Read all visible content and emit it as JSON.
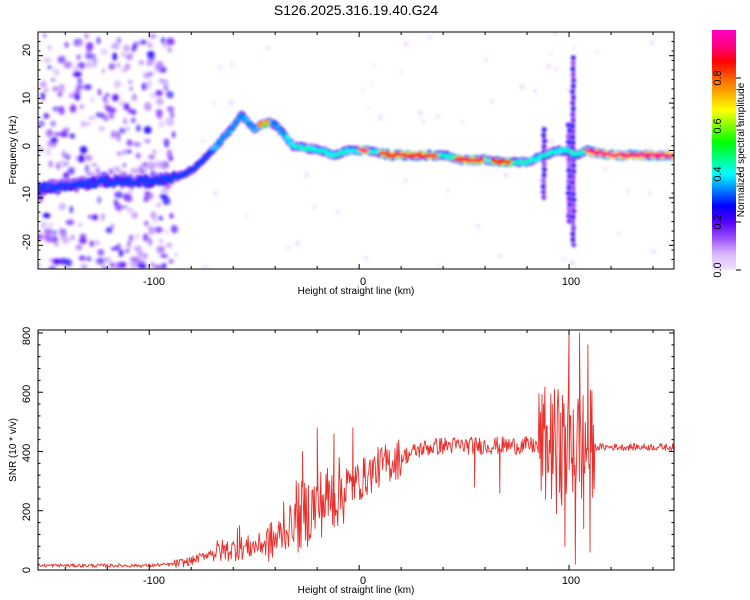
{
  "chart_data": [
    {
      "type": "heatmap",
      "title": "S126.2025.316.19.40.G24",
      "xlabel": "Height of straight line (km)",
      "ylabel": "Frequency (Hz)",
      "xlim": [
        -153,
        150
      ],
      "ylim": [
        -25,
        25
      ],
      "xticks": [
        -100,
        0,
        100
      ],
      "xtick_labels": [
        "-100",
        "0",
        "100"
      ],
      "yticks": [
        20,
        10,
        0,
        -10,
        -20
      ],
      "ytick_labels": [
        "20",
        "10",
        "0",
        "-10",
        "-20"
      ],
      "colorbar": {
        "label": "Normalized spectral amplitude",
        "range": [
          0,
          1
        ],
        "ticks": [
          0,
          0.2,
          0.4,
          0.6,
          0.8
        ],
        "tick_labels": [
          "0.0",
          "0.2",
          "0.4",
          "0.6",
          "0.8"
        ],
        "colors": [
          "#f0e2ff",
          "#d9b8ff",
          "#9b4dff",
          "#5500ff",
          "#0000ff",
          "#0080ff",
          "#00ffff",
          "#00ff80",
          "#00ff00",
          "#80ff00",
          "#ffff00",
          "#ffb000",
          "#ff6000",
          "#ff0000",
          "#ff0080",
          "#ff00c0"
        ]
      },
      "noise_region_x": [
        -153,
        -88
      ],
      "ridge": [
        {
          "x": -153,
          "y": -8.0
        },
        {
          "x": -140,
          "y": -7.5
        },
        {
          "x": -130,
          "y": -7.0
        },
        {
          "x": -120,
          "y": -6.5
        },
        {
          "x": -110,
          "y": -6.5
        },
        {
          "x": -100,
          "y": -6.5
        },
        {
          "x": -90,
          "y": -6.0
        },
        {
          "x": -83,
          "y": -5.0
        },
        {
          "x": -78,
          "y": -3.5
        },
        {
          "x": -72,
          "y": -1.0
        },
        {
          "x": -66,
          "y": 2.0
        },
        {
          "x": -60,
          "y": 5.0
        },
        {
          "x": -56,
          "y": 7.5
        },
        {
          "x": -53,
          "y": 6.0
        },
        {
          "x": -50,
          "y": 4.5
        },
        {
          "x": -45,
          "y": 6.0
        },
        {
          "x": -40,
          "y": 5.5
        },
        {
          "x": -35,
          "y": 3.0
        },
        {
          "x": -32,
          "y": 1.0
        },
        {
          "x": -25,
          "y": 0.5
        },
        {
          "x": -18,
          "y": 0.0
        },
        {
          "x": -12,
          "y": -1.0
        },
        {
          "x": -5,
          "y": 0.0
        },
        {
          "x": 5,
          "y": 0.0
        },
        {
          "x": 15,
          "y": -1.0
        },
        {
          "x": 30,
          "y": -1.0
        },
        {
          "x": 40,
          "y": -1.0
        },
        {
          "x": 50,
          "y": -2.0
        },
        {
          "x": 60,
          "y": -2.0
        },
        {
          "x": 70,
          "y": -2.5
        },
        {
          "x": 80,
          "y": -2.5
        },
        {
          "x": 88,
          "y": -1.0
        },
        {
          "x": 95,
          "y": 0.0
        },
        {
          "x": 100,
          "y": 0.0
        },
        {
          "x": 103,
          "y": -1.0
        },
        {
          "x": 108,
          "y": 0.0
        },
        {
          "x": 120,
          "y": -1.0
        },
        {
          "x": 135,
          "y": -1.0
        },
        {
          "x": 150,
          "y": -1.0
        }
      ],
      "hot_segments": [
        {
          "x0": 0,
          "x1": 5,
          "value": 0.95
        },
        {
          "x0": 10,
          "x1": 38,
          "value": 0.9
        },
        {
          "x0": 46,
          "x1": 60,
          "value": 0.9
        },
        {
          "x0": 63,
          "x1": 73,
          "value": 0.85
        },
        {
          "x0": 108,
          "x1": 150,
          "value": 0.95
        },
        {
          "x0": -48,
          "x1": -42,
          "value": 0.75
        }
      ],
      "vertical_streaks": [
        {
          "x": 88,
          "y0": -10,
          "y1": 5
        },
        {
          "x": 100,
          "y0": -15,
          "y1": 6
        },
        {
          "x": 102,
          "y0": -20,
          "y1": 20
        }
      ]
    },
    {
      "type": "line",
      "title": "",
      "xlabel": "Height of straight line (km)",
      "ylabel": "SNR (10 * v/v)",
      "xlim": [
        -153,
        150
      ],
      "ylim": [
        0,
        810
      ],
      "xticks": [
        -100,
        0,
        100
      ],
      "xtick_labels": [
        "-100",
        "0",
        "100"
      ],
      "yticks": [
        0,
        200,
        400,
        600,
        800
      ],
      "ytick_labels": [
        "0",
        "200",
        "400",
        "600",
        "800"
      ],
      "series": [
        {
          "name": "SNR",
          "color": "#e8302c",
          "envelope": [
            {
              "x": -153,
              "y": 15
            },
            {
              "x": -100,
              "y": 15
            },
            {
              "x": -88,
              "y": 20
            },
            {
              "x": -80,
              "y": 30
            },
            {
              "x": -70,
              "y": 60
            },
            {
              "x": -60,
              "y": 70
            },
            {
              "x": -50,
              "y": 80
            },
            {
              "x": -40,
              "y": 100
            },
            {
              "x": -30,
              "y": 170
            },
            {
              "x": -20,
              "y": 220
            },
            {
              "x": -10,
              "y": 260
            },
            {
              "x": 0,
              "y": 300
            },
            {
              "x": 10,
              "y": 350
            },
            {
              "x": 20,
              "y": 380
            },
            {
              "x": 30,
              "y": 410
            },
            {
              "x": 40,
              "y": 420
            },
            {
              "x": 50,
              "y": 420
            },
            {
              "x": 60,
              "y": 420
            },
            {
              "x": 70,
              "y": 420
            },
            {
              "x": 80,
              "y": 420
            },
            {
              "x": 88,
              "y": 420
            },
            {
              "x": 110,
              "y": 415
            },
            {
              "x": 130,
              "y": 415
            },
            {
              "x": 150,
              "y": 415
            }
          ],
          "spikes": [
            {
              "x": -58,
              "y": 140
            },
            {
              "x": -57,
              "y": 150
            },
            {
              "x": -36,
              "y": 230
            },
            {
              "x": -30,
              "y": 300
            },
            {
              "x": -27,
              "y": 400
            },
            {
              "x": -20,
              "y": 480
            },
            {
              "x": -12,
              "y": 460
            },
            {
              "x": -3,
              "y": 480
            },
            {
              "x": 55,
              "y": 280
            },
            {
              "x": 67,
              "y": 260
            },
            {
              "x": 92,
              "y": 560
            },
            {
              "x": 94,
              "y": 190
            },
            {
              "x": 96,
              "y": 530
            },
            {
              "x": 98,
              "y": 80
            },
            {
              "x": 100,
              "y": 810
            },
            {
              "x": 102,
              "y": 540
            },
            {
              "x": 103,
              "y": 20
            },
            {
              "x": 105,
              "y": 800
            },
            {
              "x": 107,
              "y": 140
            },
            {
              "x": 109,
              "y": 760
            },
            {
              "x": 110,
              "y": 60
            }
          ]
        }
      ]
    }
  ]
}
